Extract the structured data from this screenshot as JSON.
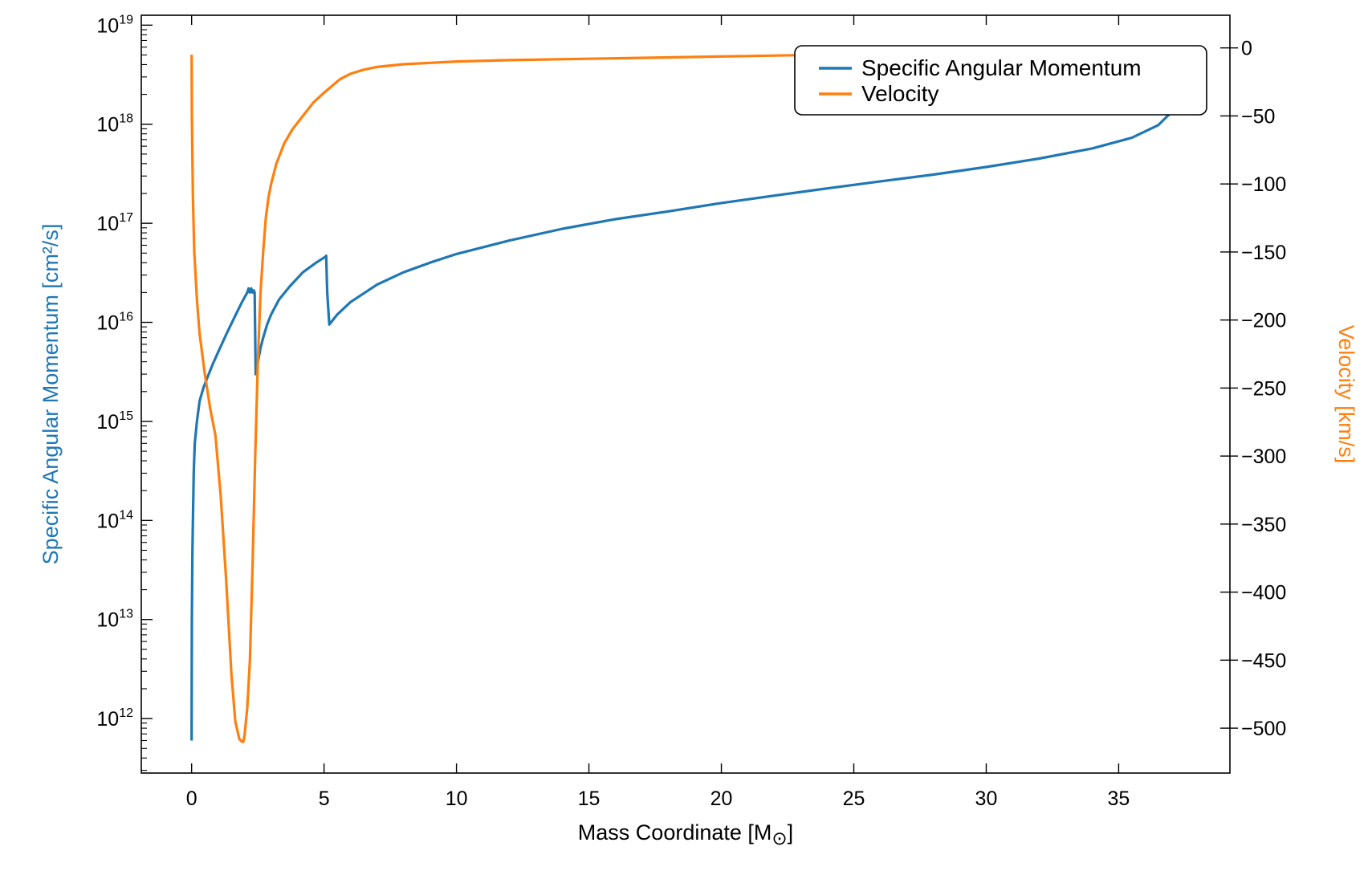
{
  "chart_data": {
    "type": "line",
    "title": "",
    "xlabel": "Mass Coordinate [M",
    "xlabel_symbol": "⊙",
    "xlabel_close": "]",
    "ylabel_left": "Specific Angular Momentum [cm²/s]",
    "ylabel_right": "Velocity [km/s]",
    "xlim": [
      -1.9,
      39.2
    ],
    "ylim_left_log10": [
      11.45,
      19.1
    ],
    "ylim_right": [
      -533,
      24
    ],
    "x_ticks": [
      0,
      5,
      10,
      15,
      20,
      25,
      30,
      35
    ],
    "x_tick_labels": [
      "0",
      "5",
      "10",
      "15",
      "20",
      "25",
      "30",
      "35"
    ],
    "y_left_tick_exponents": [
      12,
      13,
      14,
      15,
      16,
      17,
      18,
      19
    ],
    "y_left_tick_base": "10",
    "y_right_ticks": [
      0,
      -50,
      -100,
      -150,
      -200,
      -250,
      -300,
      -350,
      -400,
      -450,
      -500
    ],
    "y_right_tick_labels": [
      "0",
      "−50",
      "−100",
      "−150",
      "−200",
      "−250",
      "−300",
      "−350",
      "−400",
      "−450",
      "−500"
    ],
    "grid": false,
    "legend_position": "top-right",
    "colors": {
      "angular_momentum": "#1f77b4",
      "velocity": "#ff7f0e"
    },
    "series": [
      {
        "name": "Specific Angular Momentum",
        "axis": "left",
        "scale": "log",
        "x": [
          0.0,
          0.0,
          0.01,
          0.02,
          0.03,
          0.05,
          0.08,
          0.12,
          0.2,
          0.3,
          0.45,
          0.6,
          0.8,
          1.0,
          1.3,
          1.6,
          1.9,
          2.1,
          2.15,
          2.2,
          2.25,
          2.3,
          2.35,
          2.38,
          2.42,
          2.5,
          2.6,
          2.7,
          2.85,
          3.0,
          3.3,
          3.7,
          4.2,
          4.7,
          5.05,
          5.08,
          5.12,
          5.2,
          5.5,
          6.0,
          7.0,
          8.0,
          9.0,
          10.0,
          12.0,
          14.0,
          16.0,
          18.0,
          20.0,
          22.0,
          24.0,
          26.0,
          28.0,
          30.0,
          32.0,
          34.0,
          35.5,
          36.5,
          37.3
        ],
        "y": [
          600000000000.0,
          1000000000000.0,
          10000000000000.0,
          20000000000000.0,
          50000000000000.0,
          100000000000000.0,
          300000000000000.0,
          600000000000000.0,
          1000000000000000.0,
          1600000000000000.0,
          2200000000000000.0,
          2800000000000000.0,
          3800000000000000.0,
          5000000000000000.0,
          7500000000000000.0,
          1.1e+16,
          1.6e+16,
          2e+16,
          2.2e+16,
          2e+16,
          2.2e+16,
          2e+16,
          2.1e+16,
          2e+16,
          3000000000000000.0,
          4000000000000000.0,
          5500000000000000.0,
          7000000000000000.0,
          9500000000000000.0,
          1.2e+16,
          1.7e+16,
          2.3e+16,
          3.2e+16,
          4e+16,
          4.6e+16,
          4.7e+16,
          2e+16,
          9500000000000000.0,
          1.2e+16,
          1.6e+16,
          2.4e+16,
          3.2e+16,
          4e+16,
          4.9e+16,
          6.7e+16,
          8.8e+16,
          1.1e+17,
          1.32e+17,
          1.6e+17,
          1.9e+17,
          2.25e+17,
          2.65e+17,
          3.1e+17,
          3.7e+17,
          4.5e+17,
          5.7e+17,
          7.3e+17,
          9.8e+17,
          1.6e+18
        ]
      },
      {
        "name": "Velocity",
        "axis": "right",
        "scale": "linear",
        "x": [
          0.0,
          0.01,
          0.05,
          0.1,
          0.2,
          0.3,
          0.5,
          0.7,
          0.9,
          1.1,
          1.3,
          1.5,
          1.65,
          1.8,
          1.9,
          1.95,
          2.0,
          2.05,
          2.1,
          2.2,
          2.3,
          2.4,
          2.5,
          2.6,
          2.7,
          2.8,
          2.9,
          3.0,
          3.2,
          3.5,
          3.8,
          4.2,
          4.6,
          5.0,
          5.3,
          5.6,
          6.0,
          6.5,
          7.0,
          8.0,
          9.0,
          10.0,
          12.0,
          15.0,
          18.0,
          21.0,
          24.0,
          25.0
        ],
        "y": [
          -5,
          -50,
          -110,
          -150,
          -185,
          -210,
          -240,
          -265,
          -285,
          -330,
          -390,
          -460,
          -495,
          -508,
          -510,
          -510,
          -505,
          -495,
          -485,
          -450,
          -380,
          -300,
          -230,
          -180,
          -150,
          -125,
          -110,
          -100,
          -85,
          -70,
          -60,
          -50,
          -40,
          -33,
          -28,
          -23,
          -19,
          -16,
          -14,
          -12,
          -11,
          -10,
          -9,
          -8,
          -7,
          -6,
          -5,
          -5
        ]
      }
    ]
  }
}
